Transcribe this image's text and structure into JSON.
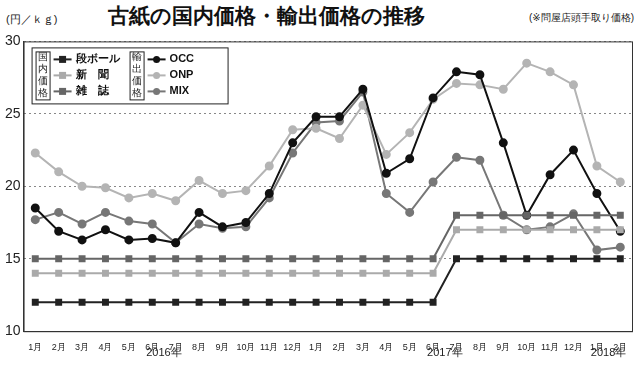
{
  "chart_data": {
    "type": "line",
    "title": "古紙の国内価格・輸出価格の推移",
    "subtitle": "(※問屋店頭手取り価格)",
    "y_label": "(円／ｋｇ)",
    "categories": [
      "1月",
      "2月",
      "3月",
      "4月",
      "5月",
      "6月",
      "7月",
      "8月",
      "9月",
      "10月",
      "11月",
      "12月",
      "1月",
      "2月",
      "3月",
      "4月",
      "5月",
      "6月",
      "7月",
      "8月",
      "9月",
      "10月",
      "11月",
      "12月",
      "1月",
      "2月"
    ],
    "x_groups": [
      {
        "label": "2016年",
        "from": 0,
        "to": 11
      },
      {
        "label": "2017年",
        "from": 12,
        "to": 23
      },
      {
        "label": "2018年",
        "from": 24,
        "to": 25
      }
    ],
    "series": [
      {
        "name": "段ボール",
        "group": "国内価格",
        "color": "#222222",
        "marker": "square",
        "values": [
          12,
          12,
          12,
          12,
          12,
          12,
          12,
          12,
          12,
          12,
          12,
          12,
          12,
          12,
          12,
          12,
          12,
          12,
          15,
          15,
          15,
          15,
          15,
          15,
          15,
          15
        ]
      },
      {
        "name": "新　聞",
        "group": "国内価格",
        "color": "#aaaaaa",
        "marker": "square",
        "values": [
          14,
          14,
          14,
          14,
          14,
          14,
          14,
          14,
          14,
          14,
          14,
          14,
          14,
          14,
          14,
          14,
          14,
          14,
          17,
          17,
          17,
          17,
          17,
          17,
          17,
          17
        ]
      },
      {
        "name": "雑　誌",
        "group": "国内価格",
        "color": "#666666",
        "marker": "square",
        "values": [
          15,
          15,
          15,
          15,
          15,
          15,
          15,
          15,
          15,
          15,
          15,
          15,
          15,
          15,
          15,
          15,
          15,
          15,
          18,
          18,
          18,
          18,
          18,
          18,
          18,
          18
        ]
      },
      {
        "name": "OCC",
        "group": "輸出価格",
        "color": "#111111",
        "marker": "circle",
        "values": [
          18.5,
          16.9,
          16.3,
          17.0,
          16.3,
          16.4,
          16.1,
          18.2,
          17.2,
          17.5,
          19.5,
          23.0,
          24.8,
          24.8,
          26.7,
          20.9,
          21.9,
          26.1,
          27.9,
          27.7,
          23.0,
          18.0,
          20.8,
          22.5,
          19.5,
          16.9
        ]
      },
      {
        "name": "ONP",
        "group": "輸出価格",
        "color": "#b4b4b4",
        "marker": "circle",
        "values": [
          22.3,
          21.0,
          20.0,
          19.9,
          19.2,
          19.5,
          19.0,
          20.4,
          19.5,
          19.7,
          21.4,
          23.9,
          24.0,
          23.3,
          25.6,
          22.2,
          23.7,
          26.0,
          27.1,
          27.0,
          26.7,
          28.5,
          27.9,
          27.0,
          21.4,
          20.3
        ]
      },
      {
        "name": "MIX",
        "group": "輸出価格",
        "color": "#777777",
        "marker": "circle",
        "values": [
          17.7,
          18.2,
          17.4,
          18.2,
          17.6,
          17.4,
          16.1,
          17.4,
          17.1,
          17.2,
          19.2,
          22.3,
          24.4,
          24.5,
          26.5,
          19.5,
          18.2,
          20.3,
          22.0,
          21.8,
          18.0,
          17.0,
          17.2,
          18.1,
          15.6,
          15.8
        ]
      }
    ],
    "ylim": [
      10,
      30
    ],
    "yticks": [
      10,
      15,
      20,
      25,
      30
    ],
    "grid": true,
    "legend": "top-left"
  }
}
